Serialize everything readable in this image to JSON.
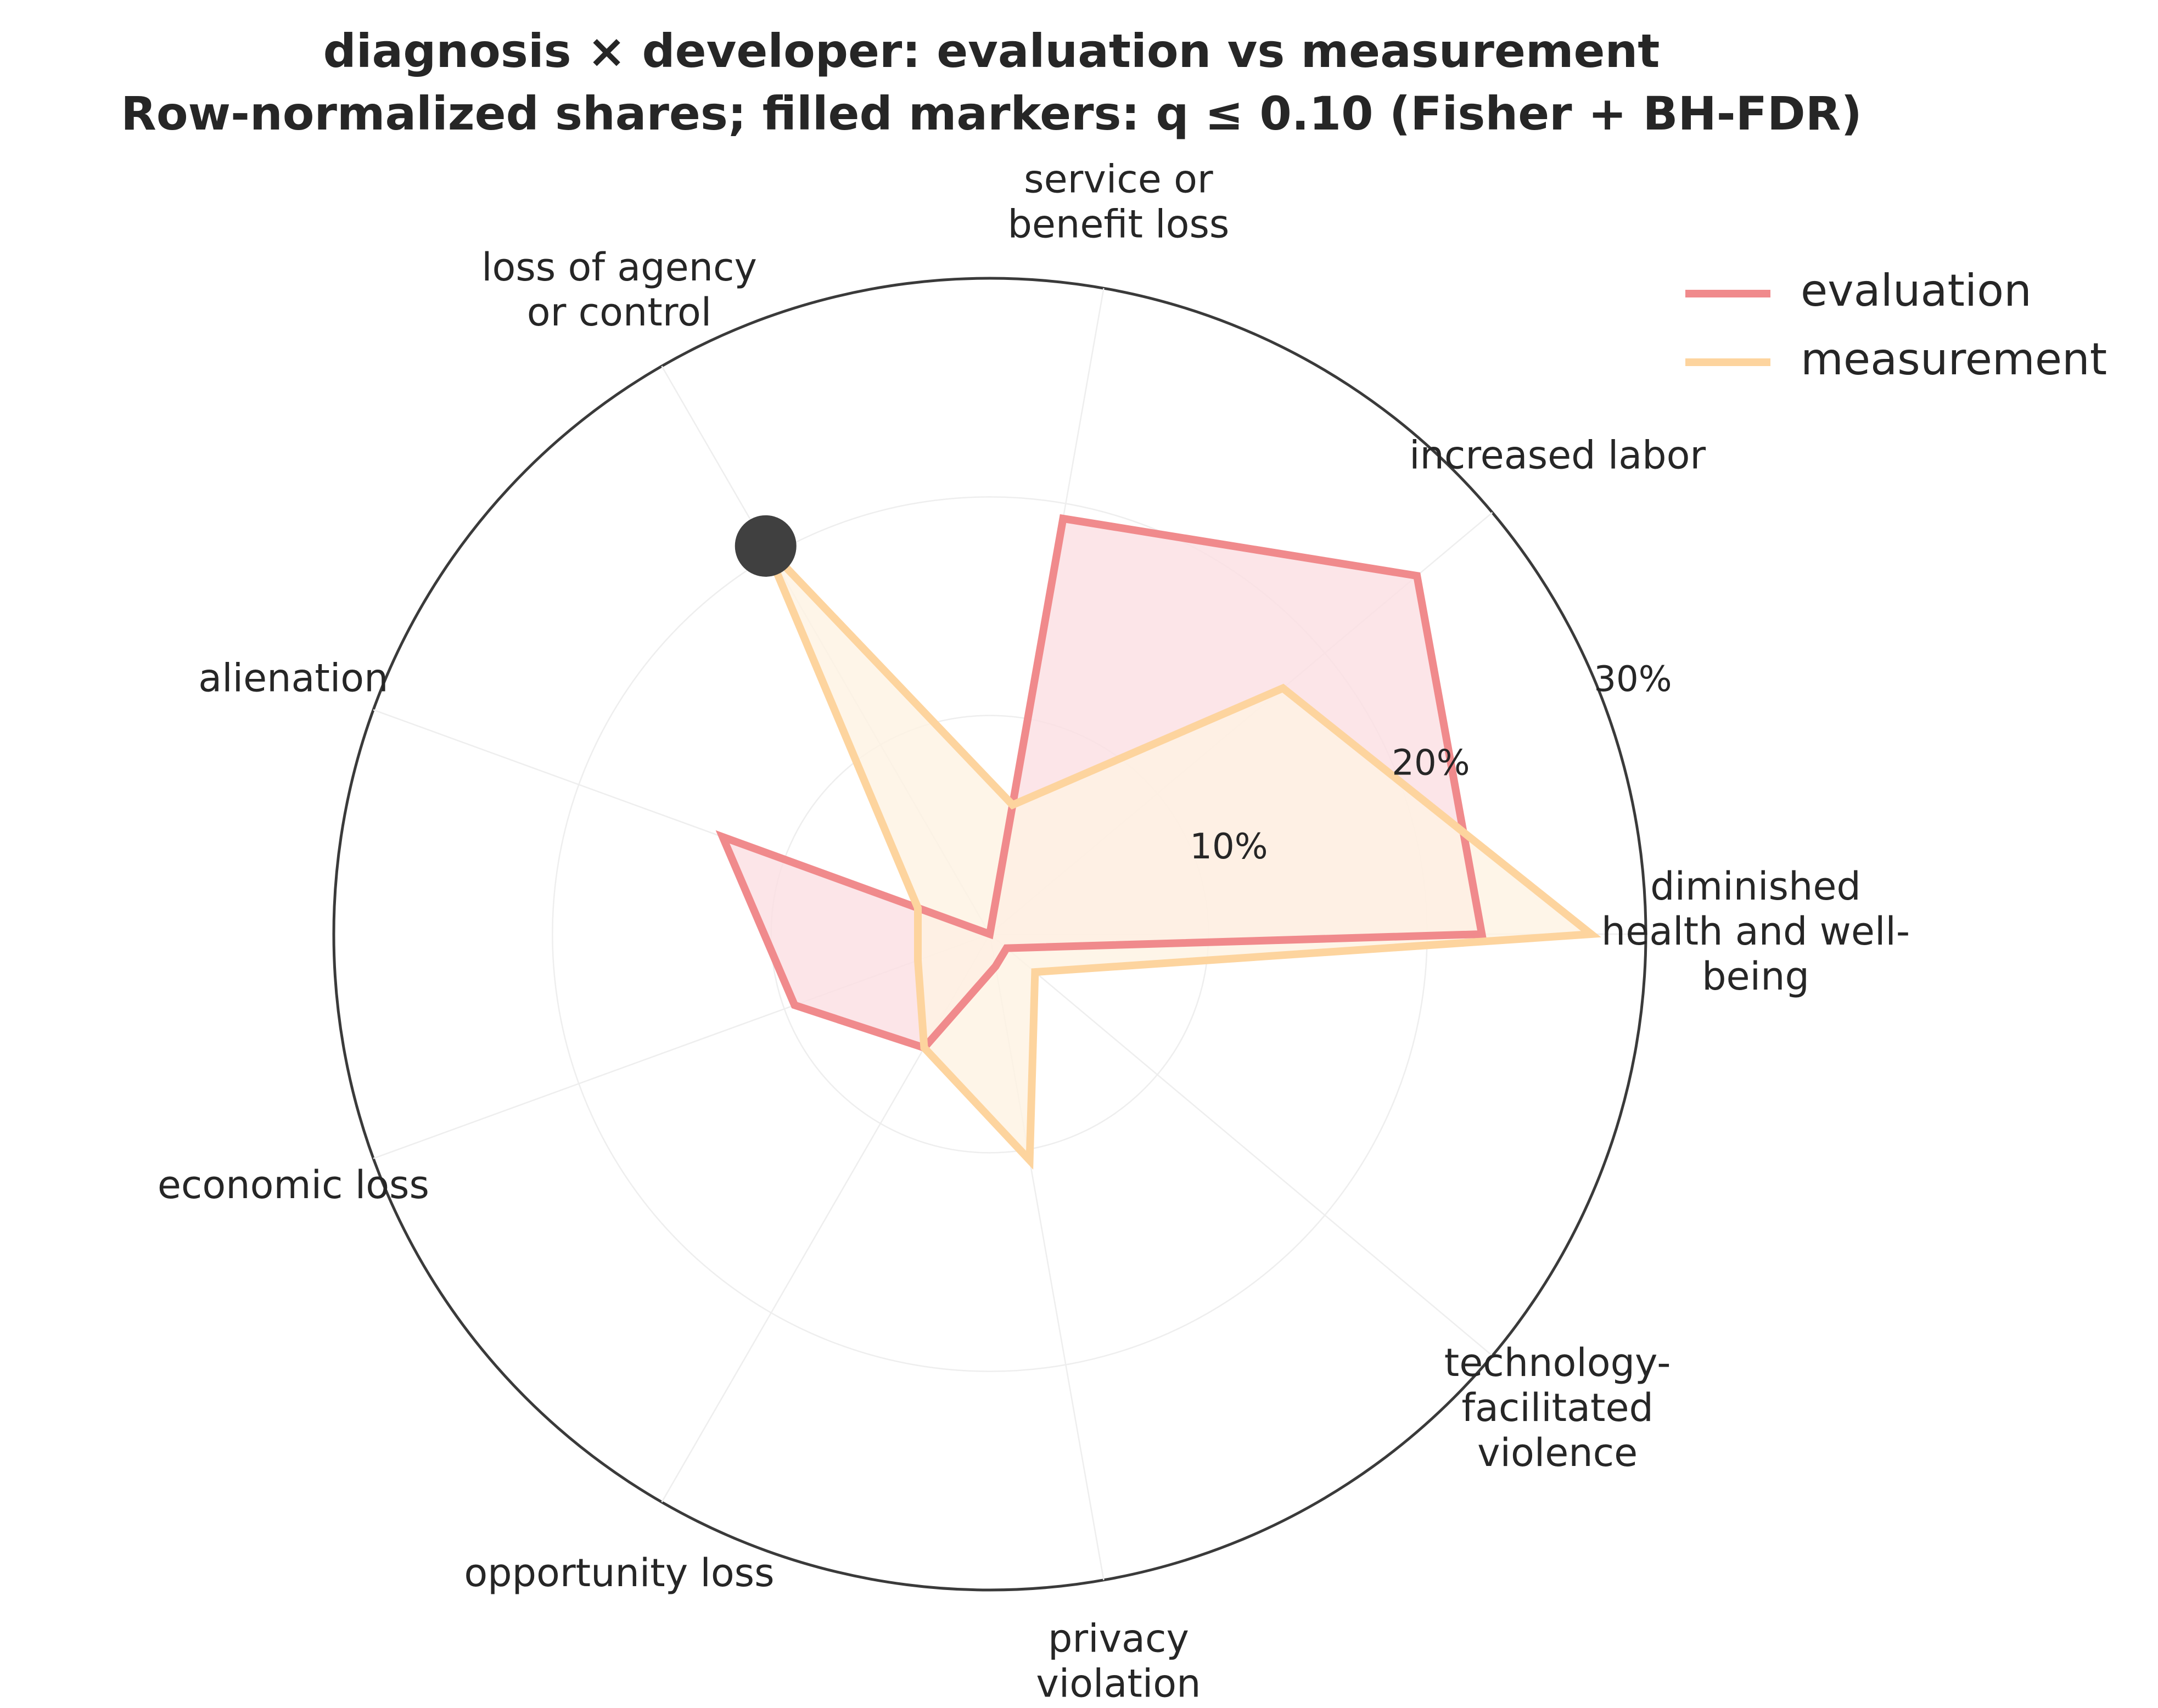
{
  "chart_data": {
    "type": "radar",
    "title_line1": "diagnosis × developer: evaluation vs measurement",
    "title_line2": "Row-normalized shares; filled markers: q ≤ 0.10 (Fisher + BH-FDR)",
    "categories": [
      "diminished health and well-being",
      "increased labor",
      "service or benefit loss",
      "loss of agency or control",
      "alienation",
      "economic loss",
      "opportunity loss",
      "privacy violation",
      "technology-facilitated violence"
    ],
    "category_label_lines": [
      [
        "diminished",
        "health and well-",
        "being"
      ],
      [
        "increased labor"
      ],
      [
        "service or",
        "benefit loss"
      ],
      [
        "loss of agency",
        "or control"
      ],
      [
        "alienation"
      ],
      [
        "economic loss"
      ],
      [
        "opportunity loss"
      ],
      [
        "privacy",
        "violation"
      ],
      [
        "technology-",
        "facilitated",
        "violence"
      ]
    ],
    "r_ticks": [
      10,
      20,
      30
    ],
    "r_tick_labels": [
      "10%",
      "20%",
      "30%"
    ],
    "r_max": 30,
    "unit": "%",
    "series": [
      {
        "name": "evaluation",
        "color": "#f08a8c",
        "fill": "#fbdfe2",
        "values": [
          22.5,
          25.5,
          19.3,
          0.0,
          13.0,
          9.5,
          6.0,
          1.5,
          1.0
        ]
      },
      {
        "name": "measurement",
        "color": "#fdd49e",
        "fill": "#fef2e2",
        "values": [
          27.5,
          17.5,
          6.0,
          20.5,
          3.5,
          3.5,
          6.0,
          10.5,
          2.7
        ]
      }
    ],
    "significant_markers": [
      {
        "series": "measurement",
        "category": "loss of agency or control",
        "color": "#404040"
      }
    ],
    "legend": {
      "position": "top-right",
      "entries": [
        "evaluation",
        "measurement"
      ]
    },
    "grid": true
  }
}
